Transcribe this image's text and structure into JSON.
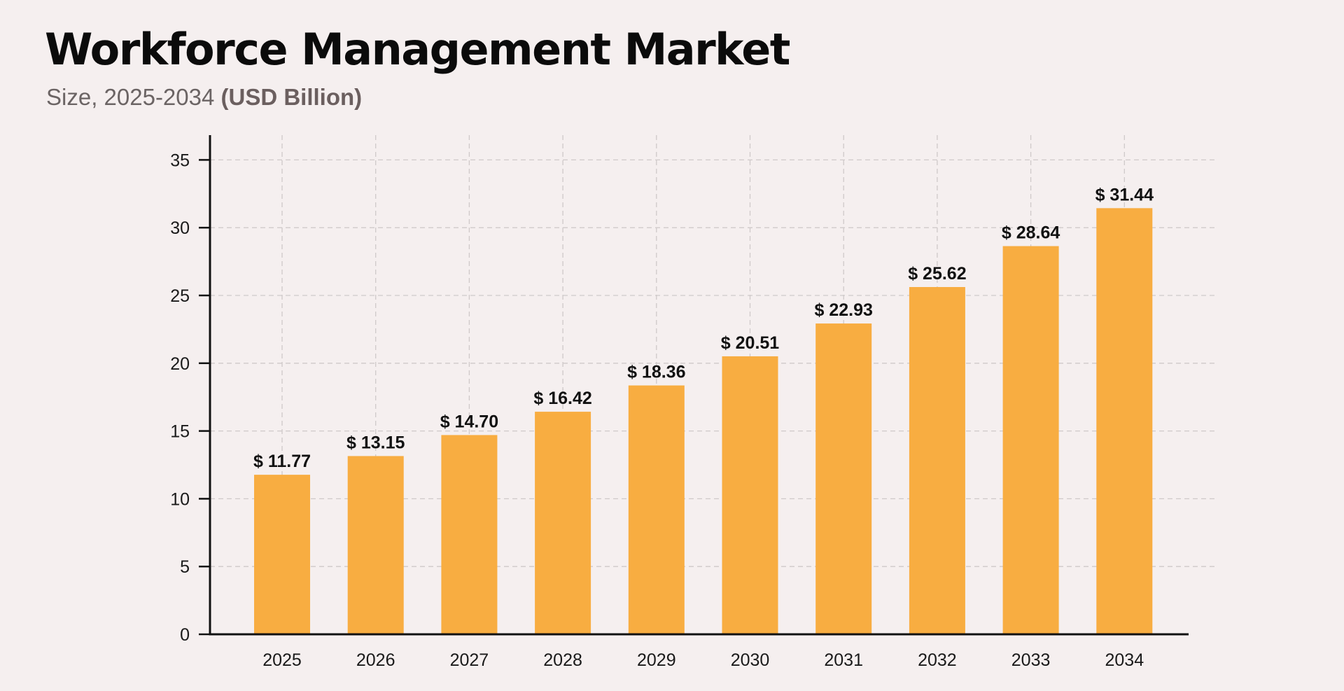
{
  "header": {
    "title": "Workforce Management Market",
    "subtitle_prefix": "Size, 2025-2034 ",
    "subtitle_unit": "(USD Billion)"
  },
  "colors": {
    "background": "#f5efef",
    "bar": "#f8ad41",
    "axis": "#111111",
    "grid": "#cfc9c9"
  },
  "chart_data": {
    "type": "bar",
    "title": "Workforce Management Market",
    "subtitle": "Size, 2025-2034 (USD Billion)",
    "categories": [
      "2025",
      "2026",
      "2027",
      "2028",
      "2029",
      "2030",
      "2031",
      "2032",
      "2033",
      "2034"
    ],
    "values": [
      11.77,
      13.15,
      14.7,
      16.42,
      18.36,
      20.51,
      22.93,
      25.62,
      28.64,
      31.44
    ],
    "data_labels": [
      "$ 11.77",
      "$ 13.15",
      "$ 14.70",
      "$ 16.42",
      "$ 18.36",
      "$ 20.51",
      "$ 22.93",
      "$ 25.62",
      "$ 28.64",
      "$ 31.44"
    ],
    "yticks": [
      "0",
      "5",
      "10",
      "15",
      "20",
      "25",
      "30",
      "35"
    ],
    "ylim": [
      0,
      37
    ],
    "xlabel": "",
    "ylabel": "",
    "grid": true,
    "legend": "none"
  }
}
